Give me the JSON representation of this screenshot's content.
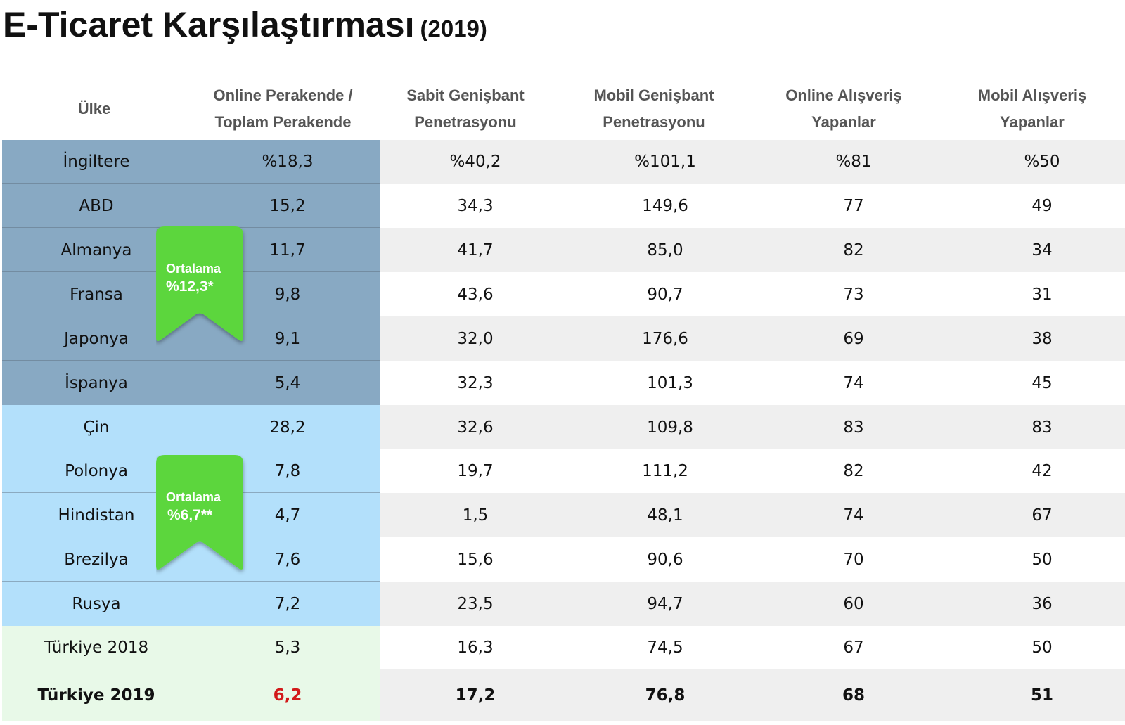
{
  "title": {
    "main": "E-Ticaret Karşılaştırması",
    "year": "(2019)"
  },
  "headers": [
    {
      "line1": "Ülke",
      "line2": ""
    },
    {
      "line1": "Online Perakende /",
      "line2": "Toplam Perakende"
    },
    {
      "line1": "Sabit Genişbant",
      "line2": "Penetrasyonu"
    },
    {
      "line1": "Mobil Genişbant",
      "line2": "Penetrasyonu"
    },
    {
      "line1": "Online Alışveriş",
      "line2": "Yapanlar"
    },
    {
      "line1": "Mobil Alışveriş",
      "line2": "Yapanlar"
    }
  ],
  "rows": [
    {
      "country": "İngiltere",
      "online_retail": "%18,3",
      "fixed_bb": "%40,2",
      "mobile_bb": "%101,1",
      "online_shoppers": "%81",
      "mobile_shoppers": "%50"
    },
    {
      "country": "ABD",
      "online_retail": "15,2",
      "fixed_bb": "34,3",
      "mobile_bb": "149,6",
      "online_shoppers": "77",
      "mobile_shoppers": "49"
    },
    {
      "country": "Almanya",
      "online_retail": "11,7",
      "fixed_bb": "41,7",
      "mobile_bb": "85,0",
      "online_shoppers": "82",
      "mobile_shoppers": "34"
    },
    {
      "country": "Fransa",
      "online_retail": "9,8",
      "fixed_bb": "43,6",
      "mobile_bb": "90,7",
      "online_shoppers": "73",
      "mobile_shoppers": "31"
    },
    {
      "country": "Japonya",
      "online_retail": "9,1",
      "fixed_bb": "32,0",
      "mobile_bb": "176,6",
      "online_shoppers": "69",
      "mobile_shoppers": "38"
    },
    {
      "country": "İspanya",
      "online_retail": "5,4",
      "fixed_bb": "32,3",
      "mobile_bb": "101,3",
      "online_shoppers": "74",
      "mobile_shoppers": "45"
    },
    {
      "country": "Çin",
      "online_retail": "28,2",
      "fixed_bb": "32,6",
      "mobile_bb": "109,8",
      "online_shoppers": "83",
      "mobile_shoppers": "83"
    },
    {
      "country": "Polonya",
      "online_retail": "7,8",
      "fixed_bb": "19,7",
      "mobile_bb": "111,2",
      "online_shoppers": "82",
      "mobile_shoppers": "42"
    },
    {
      "country": "Hindistan",
      "online_retail": "4,7",
      "fixed_bb": "1,5",
      "mobile_bb": "48,1",
      "online_shoppers": "74",
      "mobile_shoppers": "67"
    },
    {
      "country": "Brezilya",
      "online_retail": "7,6",
      "fixed_bb": "15,6",
      "mobile_bb": "90,6",
      "online_shoppers": "70",
      "mobile_shoppers": "50"
    },
    {
      "country": "Rusya",
      "online_retail": "7,2",
      "fixed_bb": "23,5",
      "mobile_bb": "94,7",
      "online_shoppers": "60",
      "mobile_shoppers": "36"
    },
    {
      "country": "Türkiye 2018",
      "online_retail": "5,3",
      "fixed_bb": "16,3",
      "mobile_bb": "74,5",
      "online_shoppers": "67",
      "mobile_shoppers": "50"
    },
    {
      "country": "Türkiye 2019",
      "online_retail": "6,2",
      "fixed_bb": "17,2",
      "mobile_bb": "76,8",
      "online_shoppers": "68",
      "mobile_shoppers": "51"
    }
  ],
  "ribbons": [
    {
      "label": "Ortalama",
      "value": "%12,3*"
    },
    {
      "label": "Ortalama",
      "value": "%6,7**"
    }
  ],
  "colors": {
    "developed_group": "#88a9c3",
    "emerging_group": "#b3e0fb",
    "turkey_group": "#e8f9e8",
    "ribbon": "#5cd63c",
    "stripe": "#efefef",
    "highlight": "#d21a1a"
  }
}
